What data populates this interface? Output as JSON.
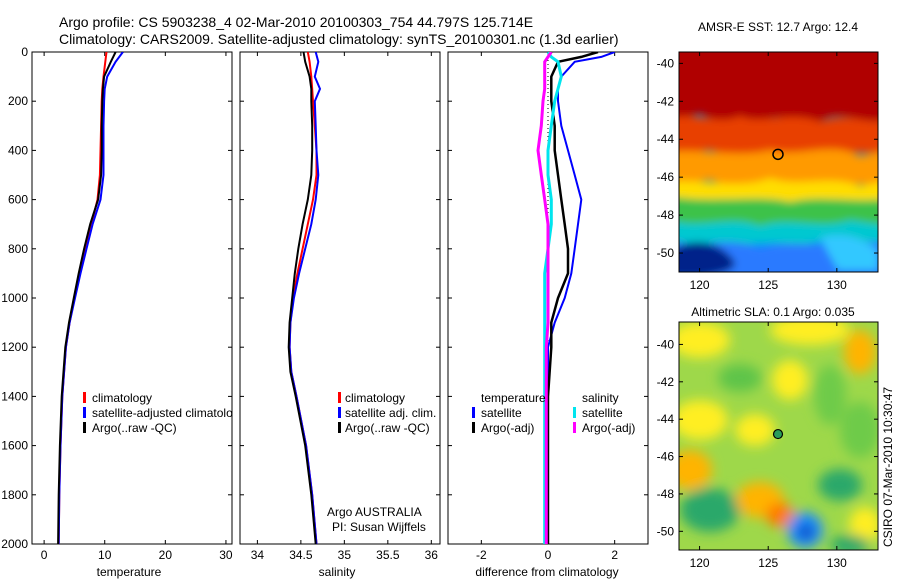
{
  "title_line1": "Argo profile: CS 5903238_4 02-Mar-2010 20100303_754 44.797S 125.714E",
  "title_line2": "Climatology: CARS2009. Satellite-adjusted climatology: synTS_20100301.nc (1.3d earlier)",
  "footer_credit": "CSIRO 07-Mar-2010 10:30:47",
  "argo_credit": {
    "line1": "Argo AUSTRALIA",
    "line2": "PI: Susan Wijffels"
  },
  "colors": {
    "climatology": "#ff0000",
    "satellite": "#0000ff",
    "argo": "#000000",
    "cyan": "#00e5ee",
    "magenta": "#ff00ff"
  },
  "chart_data": [
    {
      "type": "line",
      "name": "temperature",
      "xlabel": "temperature",
      "ylabel": "",
      "xlim": [
        -2,
        31
      ],
      "ylim": [
        2000,
        0
      ],
      "xticks": [
        0,
        10,
        20,
        30
      ],
      "yticks": [
        0,
        200,
        400,
        600,
        800,
        1000,
        1200,
        1400,
        1600,
        1800,
        2000
      ],
      "legend": [
        "climatology",
        "satellite-adjusted climatology",
        "Argo(..raw -QC)"
      ],
      "legend_position": "lower-right",
      "depth": [
        0,
        40,
        100,
        150,
        200,
        300,
        400,
        500,
        600,
        700,
        800,
        900,
        1000,
        1100,
        1200,
        1400,
        1600,
        1800,
        2000
      ],
      "series": [
        {
          "name": "climatology",
          "color": "#ff0000",
          "values": [
            10.3,
            10.1,
            9.8,
            9.6,
            9.5,
            9.4,
            9.3,
            9.2,
            8.8,
            7.8,
            6.8,
            5.8,
            5.0,
            4.2,
            3.6,
            3.0,
            2.7,
            2.5,
            2.4
          ]
        },
        {
          "name": "satellite-adjusted climatology",
          "color": "#0000ff",
          "values": [
            13.0,
            11.8,
            10.4,
            10.0,
            9.9,
            9.8,
            9.8,
            9.8,
            9.3,
            8.0,
            7.0,
            6.0,
            5.1,
            4.2,
            3.6,
            3.0,
            2.7,
            2.5,
            2.4
          ]
        },
        {
          "name": "Argo(..raw -QC)",
          "color": "#000000",
          "values": [
            11.8,
            11.0,
            9.9,
            9.7,
            9.6,
            9.5,
            9.5,
            9.4,
            8.9,
            7.6,
            6.6,
            5.7,
            4.9,
            4.1,
            3.5,
            2.9,
            2.6,
            2.4,
            2.3
          ]
        }
      ]
    },
    {
      "type": "line",
      "name": "salinity",
      "xlabel": "salinity",
      "ylabel": "",
      "xlim": [
        33.8,
        36.1
      ],
      "ylim": [
        2000,
        0
      ],
      "xticks": [
        34,
        34.5,
        35,
        35.5,
        36
      ],
      "legend": [
        "climatology",
        "satellite adj. clim.",
        "Argo(..raw -QC)"
      ],
      "legend_position": "lower-right",
      "depth": [
        0,
        40,
        100,
        150,
        200,
        300,
        400,
        500,
        600,
        700,
        800,
        900,
        1000,
        1100,
        1200,
        1300,
        1400,
        1600,
        1800,
        2000
      ],
      "series": [
        {
          "name": "climatology",
          "color": "#ff0000",
          "values": [
            34.58,
            34.6,
            34.62,
            34.63,
            34.64,
            34.66,
            34.68,
            34.68,
            34.64,
            34.58,
            34.52,
            34.46,
            34.41,
            34.38,
            34.37,
            34.39,
            34.45,
            34.56,
            34.63,
            34.68
          ]
        },
        {
          "name": "satellite adj. clim.",
          "color": "#0000ff",
          "values": [
            34.67,
            34.7,
            34.66,
            34.72,
            34.66,
            34.67,
            34.68,
            34.7,
            34.67,
            34.62,
            34.55,
            34.48,
            34.42,
            34.38,
            34.37,
            34.39,
            34.45,
            34.56,
            34.63,
            34.68
          ]
        },
        {
          "name": "Argo(..raw -QC)",
          "color": "#000000",
          "values": [
            34.53,
            34.55,
            34.6,
            34.62,
            34.62,
            34.63,
            34.63,
            34.62,
            34.58,
            34.52,
            34.47,
            34.43,
            34.4,
            34.37,
            34.36,
            34.38,
            34.44,
            34.55,
            34.62,
            34.67
          ]
        }
      ]
    },
    {
      "type": "line",
      "name": "difference from climatology",
      "xlabel": "difference from climatology",
      "ylabel": "",
      "xlim": [
        -3,
        3
      ],
      "ylim": [
        2000,
        0
      ],
      "xticks": [
        -2,
        0,
        2
      ],
      "legend_left_title": "temperature",
      "legend_right_title": "salinity",
      "legend_left": [
        "satellite",
        "Argo(-adj)"
      ],
      "legend_right": [
        "satellite",
        "Argo(-adj)"
      ],
      "legend_position": "lower-center",
      "depth": [
        0,
        20,
        40,
        100,
        150,
        200,
        300,
        400,
        500,
        600,
        700,
        800,
        900,
        1000,
        1100,
        1200,
        1400,
        1600,
        1800,
        2000
      ],
      "series": [
        {
          "name": "temperature satellite",
          "color": "#0000ff",
          "values": [
            2.0,
            1.6,
            0.8,
            0.4,
            0.3,
            0.3,
            0.4,
            0.6,
            0.8,
            1.0,
            0.9,
            0.8,
            0.7,
            0.5,
            0.2,
            0.0,
            0.0,
            0.0,
            0.0,
            0.0
          ]
        },
        {
          "name": "temperature Argo(-adj)",
          "color": "#000000",
          "values": [
            1.5,
            1.0,
            0.3,
            0.1,
            0.1,
            0.1,
            0.2,
            0.2,
            0.3,
            0.4,
            0.5,
            0.6,
            0.6,
            0.3,
            0.1,
            0.1,
            0.0,
            0.0,
            0.0,
            0.0
          ]
        },
        {
          "name": "salinity satellite",
          "color": "#00e5ee",
          "values": [
            0.0,
            0.1,
            0.3,
            0.4,
            0.3,
            0.2,
            0.1,
            0.0,
            0.0,
            0.1,
            0.1,
            0.0,
            -0.1,
            -0.1,
            -0.1,
            -0.1,
            -0.1,
            -0.1,
            -0.1,
            -0.1
          ]
        },
        {
          "name": "salinity Argo(-adj)",
          "color": "#ff00ff",
          "values": [
            0.1,
            0.0,
            -0.1,
            -0.1,
            -0.1,
            -0.15,
            -0.2,
            -0.3,
            -0.2,
            -0.1,
            0.0,
            0.0,
            0.0,
            0.0,
            0.0,
            -0.05,
            -0.05,
            -0.05,
            -0.05,
            -0.05
          ]
        }
      ]
    },
    {
      "type": "heatmap",
      "name": "sst_map",
      "title": "AMSR-E SST: 12.7 Argo: 12.4",
      "xlim": [
        118.5,
        133
      ],
      "ylim": [
        -51,
        -39.4
      ],
      "xticks": [
        120,
        125,
        130
      ],
      "yticks": [
        -40,
        -42,
        -44,
        -46,
        -48,
        -50
      ],
      "marker": {
        "lon": 125.714,
        "lat": -44.797
      }
    },
    {
      "type": "heatmap",
      "name": "sla_map",
      "title": "Altimetric SLA: 0.1 Argo: 0.035",
      "xlim": [
        118.5,
        133
      ],
      "ylim": [
        -51,
        -38.8
      ],
      "xticks": [
        120,
        125,
        130
      ],
      "yticks": [
        -40,
        -42,
        -44,
        -46,
        -48,
        -50
      ],
      "marker": {
        "lon": 125.714,
        "lat": -44.797
      }
    }
  ]
}
